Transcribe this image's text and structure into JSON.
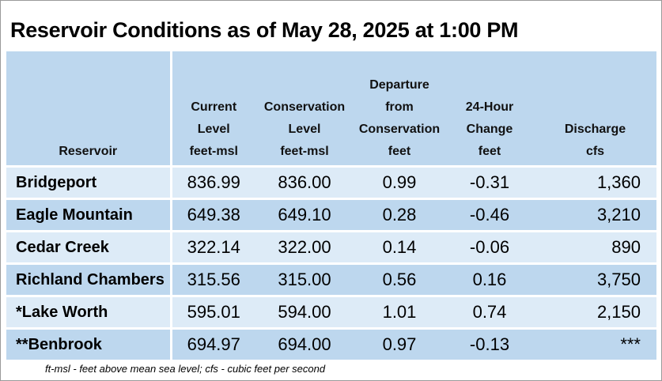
{
  "title": "Reservoir Conditions as of May 28, 2025 at 1:00 PM",
  "headers": [
    {
      "lines": [
        "Reservoir"
      ]
    },
    {
      "lines": [
        "Current",
        "Level",
        "feet-msl"
      ]
    },
    {
      "lines": [
        "Conservation",
        "Level",
        "feet-msl"
      ]
    },
    {
      "lines": [
        "Departure",
        "from",
        "Conservation",
        "feet"
      ]
    },
    {
      "lines": [
        "24-Hour",
        "Change",
        "feet"
      ]
    },
    {
      "lines": [
        "Discharge",
        "cfs"
      ]
    }
  ],
  "rows": [
    {
      "name": "Bridgeport",
      "current": "836.99",
      "conservation": "836.00",
      "departure": "0.99",
      "change": "-0.31",
      "discharge": "1,360"
    },
    {
      "name": "Eagle Mountain",
      "current": "649.38",
      "conservation": "649.10",
      "departure": "0.28",
      "change": "-0.46",
      "discharge": "3,210"
    },
    {
      "name": "Cedar Creek",
      "current": "322.14",
      "conservation": "322.00",
      "departure": "0.14",
      "change": "-0.06",
      "discharge": "890"
    },
    {
      "name": "Richland Chambers",
      "current": "315.56",
      "conservation": "315.00",
      "departure": "0.56",
      "change": "0.16",
      "discharge": "3,750"
    },
    {
      "name": "*Lake Worth",
      "current": "595.01",
      "conservation": "594.00",
      "departure": "1.01",
      "change": "0.74",
      "discharge": "2,150"
    },
    {
      "name": "**Benbrook",
      "current": "694.97",
      "conservation": "694.00",
      "departure": "0.97",
      "change": "-0.13",
      "discharge": "***"
    }
  ],
  "footnote": "ft-msl - feet above mean sea level; cfs - cubic feet per second",
  "colors": {
    "header_bg": "#bdd7ee",
    "row_light": "#ddebf7",
    "row_dark": "#bdd7ee"
  }
}
